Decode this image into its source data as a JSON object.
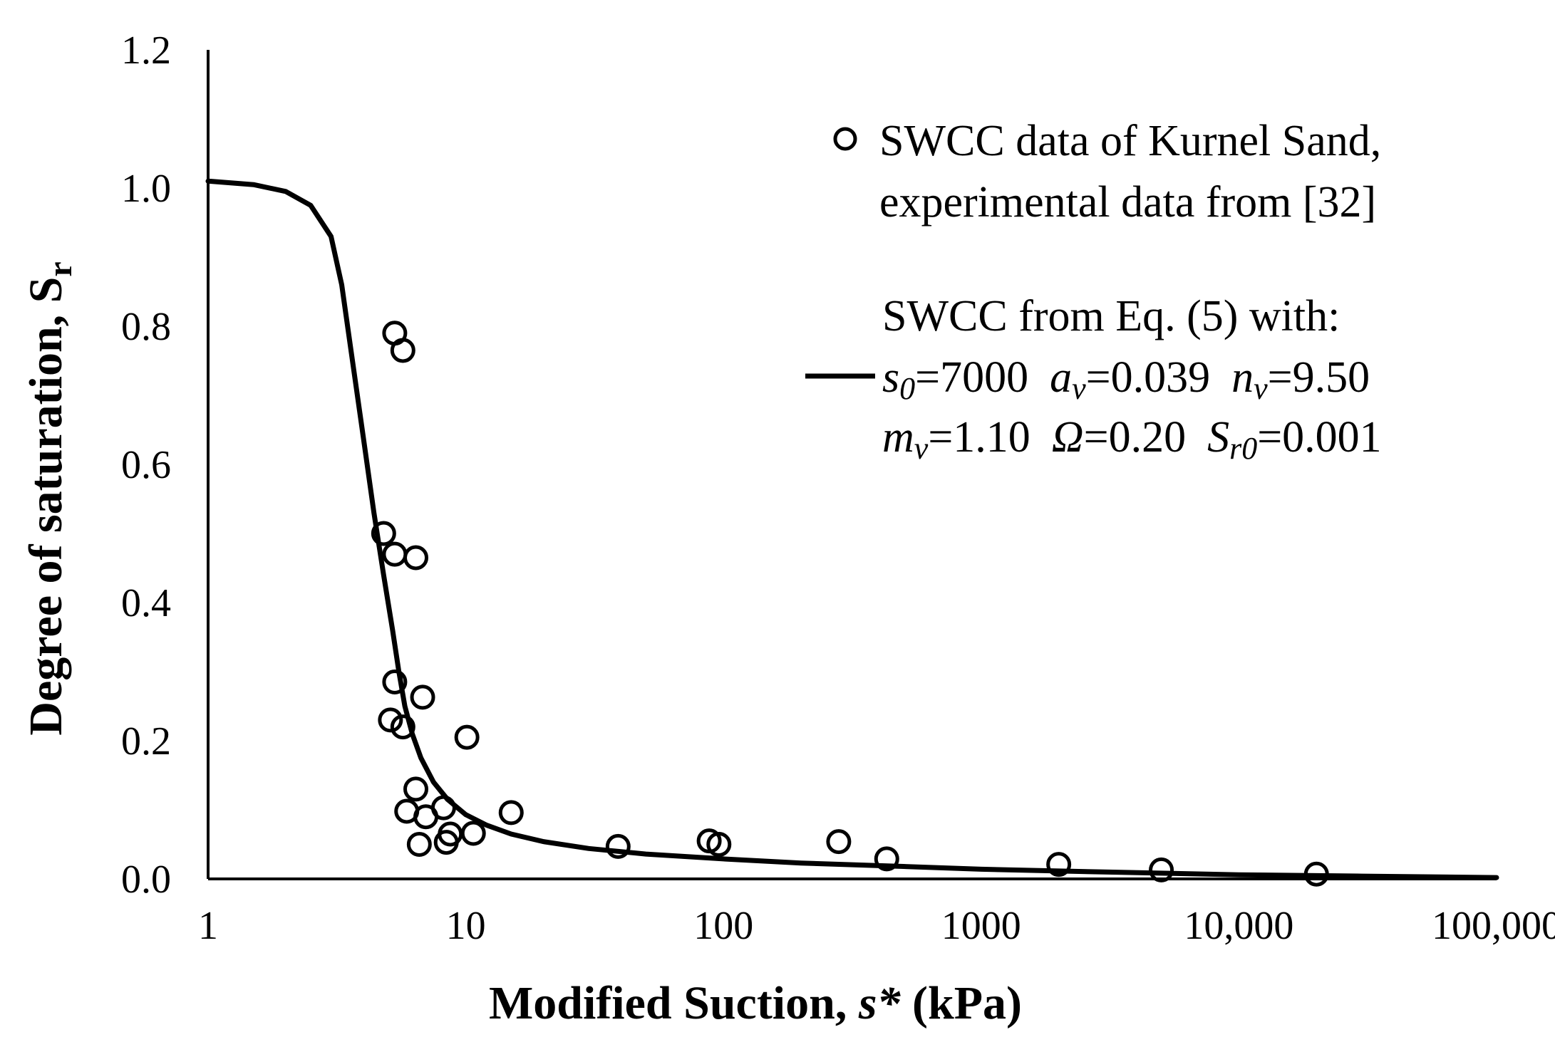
{
  "chart_data": {
    "type": "scatter",
    "xlabel": {
      "main": "Modified Suction, ",
      "var": "s*",
      "unit": " (kPa)"
    },
    "ylabel": {
      "main": "Degree of saturation, S",
      "sub": "r"
    },
    "x_scale": "log",
    "xlim": [
      1,
      100000
    ],
    "ylim": [
      0,
      1.2
    ],
    "x_ticks": [
      {
        "value": 1,
        "label": "1"
      },
      {
        "value": 10,
        "label": "10"
      },
      {
        "value": 100,
        "label": "100"
      },
      {
        "value": 1000,
        "label": "1000"
      },
      {
        "value": 10000,
        "label": "10,000"
      },
      {
        "value": 100000,
        "label": "100,000"
      }
    ],
    "y_ticks": [
      {
        "value": 0.0,
        "label": "0.0"
      },
      {
        "value": 0.2,
        "label": "0.2"
      },
      {
        "value": 0.4,
        "label": "0.4"
      },
      {
        "value": 0.6,
        "label": "0.6"
      },
      {
        "value": 0.8,
        "label": "0.8"
      },
      {
        "value": 1.0,
        "label": "1.0"
      },
      {
        "value": 1.2,
        "label": "1.2"
      }
    ],
    "series": [
      {
        "name": "SWCC data of Kurnel Sand, experimental data from [32]",
        "kind": "scatter",
        "marker": "open-circle",
        "points": [
          {
            "x": 5.3,
            "y": 0.79
          },
          {
            "x": 5.7,
            "y": 0.765
          },
          {
            "x": 4.8,
            "y": 0.5
          },
          {
            "x": 5.3,
            "y": 0.47
          },
          {
            "x": 6.4,
            "y": 0.465
          },
          {
            "x": 5.3,
            "y": 0.285
          },
          {
            "x": 6.8,
            "y": 0.263
          },
          {
            "x": 5.1,
            "y": 0.23
          },
          {
            "x": 5.7,
            "y": 0.22
          },
          {
            "x": 10.1,
            "y": 0.205
          },
          {
            "x": 6.4,
            "y": 0.13
          },
          {
            "x": 8.2,
            "y": 0.103
          },
          {
            "x": 5.9,
            "y": 0.098
          },
          {
            "x": 7.0,
            "y": 0.09
          },
          {
            "x": 15.0,
            "y": 0.096
          },
          {
            "x": 8.7,
            "y": 0.065
          },
          {
            "x": 10.7,
            "y": 0.066
          },
          {
            "x": 6.6,
            "y": 0.05
          },
          {
            "x": 8.4,
            "y": 0.053
          },
          {
            "x": 39,
            "y": 0.047
          },
          {
            "x": 88,
            "y": 0.055
          },
          {
            "x": 96,
            "y": 0.05
          },
          {
            "x": 280,
            "y": 0.054
          },
          {
            "x": 430,
            "y": 0.029
          },
          {
            "x": 2000,
            "y": 0.021
          },
          {
            "x": 5000,
            "y": 0.013
          },
          {
            "x": 20000,
            "y": 0.007
          }
        ]
      },
      {
        "name": "SWCC from Eq. (5)",
        "kind": "line",
        "points": [
          {
            "x": 1,
            "y": 1.01
          },
          {
            "x": 1.5,
            "y": 1.005
          },
          {
            "x": 2,
            "y": 0.995
          },
          {
            "x": 2.5,
            "y": 0.975
          },
          {
            "x": 3,
            "y": 0.93
          },
          {
            "x": 3.3,
            "y": 0.86
          },
          {
            "x": 3.6,
            "y": 0.76
          },
          {
            "x": 4,
            "y": 0.64
          },
          {
            "x": 4.4,
            "y": 0.53
          },
          {
            "x": 4.8,
            "y": 0.44
          },
          {
            "x": 5.2,
            "y": 0.36
          },
          {
            "x": 5.5,
            "y": 0.3
          },
          {
            "x": 5.8,
            "y": 0.25
          },
          {
            "x": 6.2,
            "y": 0.21
          },
          {
            "x": 6.7,
            "y": 0.175
          },
          {
            "x": 7.5,
            "y": 0.14
          },
          {
            "x": 8.5,
            "y": 0.115
          },
          {
            "x": 10,
            "y": 0.093
          },
          {
            "x": 12,
            "y": 0.078
          },
          {
            "x": 15,
            "y": 0.065
          },
          {
            "x": 20,
            "y": 0.054
          },
          {
            "x": 30,
            "y": 0.044
          },
          {
            "x": 50,
            "y": 0.036
          },
          {
            "x": 100,
            "y": 0.029
          },
          {
            "x": 200,
            "y": 0.023
          },
          {
            "x": 500,
            "y": 0.018
          },
          {
            "x": 1000,
            "y": 0.014
          },
          {
            "x": 3000,
            "y": 0.01
          },
          {
            "x": 10000,
            "y": 0.006
          },
          {
            "x": 30000,
            "y": 0.004
          },
          {
            "x": 100000,
            "y": 0.002
          }
        ]
      }
    ],
    "legend": {
      "placement": "top-right",
      "scatter_label_lines": [
        "SWCC data of Kurnel Sand,",
        "experimental data from [32]"
      ],
      "line_label_header": "SWCC from Eq. (5) with:",
      "params": {
        "s0_sym": "s",
        "s0_sub": "0",
        "s0_val": "=7000",
        "av_sym": "a",
        "av_sub": "v",
        "av_val": "=0.039",
        "nv_sym": "n",
        "nv_sub": "v",
        "nv_val": "=9.50",
        "mv_sym": "m",
        "mv_sub": "v",
        "mv_val": "=1.10",
        "omega_sym": "Ω",
        "omega_val": "=0.20",
        "sr0_sym": "S",
        "sr0_sub": "r0",
        "sr0_val": "=0.001"
      }
    }
  }
}
